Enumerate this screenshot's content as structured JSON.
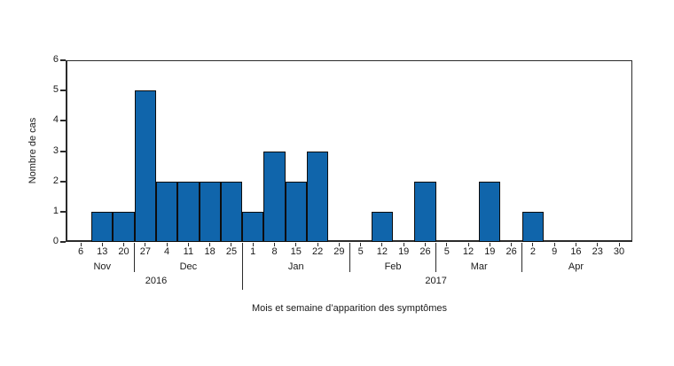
{
  "figure": {
    "background_color": "#ffffff",
    "axis_color": "#2b2b2b",
    "text_color": "#1a1a1a"
  },
  "chart_data": {
    "type": "bar",
    "title": "",
    "xlabel": "Mois et semaine d’apparition des symptômes",
    "ylabel": "Nombre de cas",
    "ylim": [
      0,
      6
    ],
    "yticks": [
      0,
      1,
      2,
      3,
      4,
      5,
      6
    ],
    "grid": "off",
    "legend": "none",
    "bar_color": "#1065ab",
    "bar_border_color": "#0d0d0d",
    "categories": [
      "6",
      "13",
      "20",
      "27",
      "4",
      "11",
      "18",
      "25",
      "1",
      "8",
      "15",
      "22",
      "29",
      "5",
      "12",
      "19",
      "26",
      "5",
      "12",
      "19",
      "26",
      "2",
      "9",
      "16",
      "23",
      "30"
    ],
    "values": [
      0,
      1,
      1,
      5,
      2,
      2,
      2,
      2,
      1,
      3,
      2,
      3,
      0,
      0,
      1,
      0,
      2,
      0,
      0,
      2,
      0,
      1,
      0,
      0,
      0,
      0
    ],
    "month_groups": [
      {
        "label": "Nov",
        "start": 0,
        "end": 2
      },
      {
        "label": "Dec",
        "start": 3,
        "end": 7
      },
      {
        "label": "Jan",
        "start": 8,
        "end": 12
      },
      {
        "label": "Feb",
        "start": 13,
        "end": 16
      },
      {
        "label": "Mar",
        "start": 17,
        "end": 20
      },
      {
        "label": "Apr",
        "start": 21,
        "end": 25
      }
    ],
    "year_groups": [
      {
        "label": "2016",
        "start": 0,
        "end": 7
      },
      {
        "label": "2017",
        "start": 8,
        "end": 25
      }
    ]
  }
}
